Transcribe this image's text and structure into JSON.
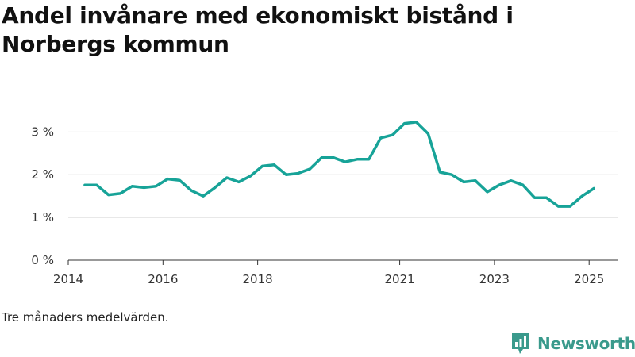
{
  "title": "Andel invånare med ekonomiskt bistånd i Norbergs kommun",
  "footnote": "Tre månaders medelvärden.",
  "brand": {
    "name": "Newsworthy",
    "icon": "newsworthy-logo-icon",
    "color": "#3a9a8c"
  },
  "colors": {
    "line": "#17a398",
    "grid": "#d9d9d9",
    "axis": "#333333"
  },
  "chart_data": {
    "type": "line",
    "title": "Andel invånare med ekonomiskt bistånd i Norbergs kommun",
    "xlabel": "",
    "ylabel": "",
    "ylim": [
      0,
      3.6
    ],
    "yticks": [
      0,
      1,
      2,
      3
    ],
    "ytick_labels": [
      "0 %",
      "1 %",
      "2 %",
      "3 %"
    ],
    "xlim": [
      2014.0,
      2025.6
    ],
    "xticks": [
      2014,
      2016,
      2018,
      2021,
      2023,
      2025
    ],
    "xtick_labels": [
      "2014",
      "2016",
      "2018",
      "2021",
      "2023",
      "2025"
    ],
    "grid": true,
    "series": [
      {
        "x": [
          2014.35,
          2014.6,
          2014.85,
          2015.1,
          2015.35,
          2015.6,
          2015.85,
          2016.1,
          2016.35,
          2016.6,
          2016.85,
          2017.1,
          2017.35,
          2017.6,
          2017.85,
          2018.1,
          2018.35,
          2018.6,
          2018.85,
          2019.1,
          2019.35,
          2019.6,
          2019.85,
          2020.1,
          2020.35,
          2020.6,
          2020.85,
          2021.1,
          2021.35,
          2021.6,
          2021.85,
          2022.1,
          2022.35,
          2022.6,
          2022.85,
          2023.1,
          2023.35,
          2023.6,
          2023.85,
          2024.1,
          2024.35,
          2024.6,
          2024.85,
          2025.1
        ],
        "values": [
          1.76,
          1.76,
          1.53,
          1.56,
          1.73,
          1.7,
          1.73,
          1.9,
          1.87,
          1.63,
          1.5,
          1.7,
          1.93,
          1.83,
          1.97,
          2.2,
          2.23,
          2.0,
          2.03,
          2.13,
          2.4,
          2.4,
          2.3,
          2.36,
          2.36,
          2.86,
          2.93,
          3.2,
          3.23,
          2.96,
          2.06,
          2.0,
          1.83,
          1.86,
          1.6,
          1.76,
          1.86,
          1.76,
          1.46,
          1.46,
          1.26,
          1.26,
          1.5,
          1.68
        ]
      }
    ]
  }
}
